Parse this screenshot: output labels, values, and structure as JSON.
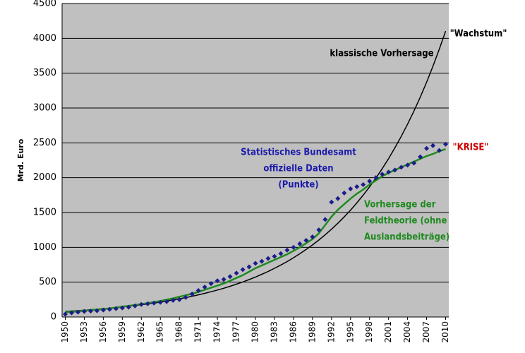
{
  "chart_data": {
    "type": "line",
    "ylabel": "Mrd. Euro",
    "x": [
      1950,
      1951,
      1952,
      1953,
      1954,
      1955,
      1956,
      1957,
      1958,
      1959,
      1960,
      1961,
      1962,
      1963,
      1964,
      1965,
      1966,
      1967,
      1968,
      1969,
      1970,
      1971,
      1972,
      1973,
      1974,
      1975,
      1976,
      1977,
      1978,
      1979,
      1980,
      1981,
      1982,
      1983,
      1984,
      1985,
      1986,
      1987,
      1988,
      1989,
      1990,
      1991,
      1992,
      1993,
      1994,
      1995,
      1996,
      1997,
      1998,
      1999,
      2000,
      2001,
      2002,
      2003,
      2004,
      2005,
      2006,
      2007,
      2008,
      2009,
      2010
    ],
    "series": [
      {
        "color": "#000000",
        "style": "line",
        "values": [
          80,
          85,
          91,
          97,
          104,
          111,
          119,
          127,
          135,
          145,
          154,
          165,
          176,
          188,
          201,
          214,
          229,
          245,
          261,
          279,
          298,
          318,
          340,
          363,
          387,
          413,
          441,
          471,
          503,
          537,
          574,
          613,
          654,
          699,
          746,
          796,
          850,
          908,
          970,
          1035,
          1105,
          1180,
          1260,
          1346,
          1437,
          1534,
          1638,
          1749,
          1868,
          1994,
          2130,
          2274,
          2428,
          2593,
          2769,
          2956,
          3157,
          3371,
          3599,
          3843,
          4104
        ]
      },
      {
        "color": "#1f8a1f",
        "style": "line",
        "values": [
          70,
          75,
          82,
          90,
          98,
          106,
          115,
          125,
          136,
          148,
          160,
          172,
          185,
          200,
          215,
          230,
          248,
          268,
          290,
          312,
          335,
          360,
          390,
          420,
          450,
          480,
          520,
          560,
          600,
          650,
          700,
          740,
          780,
          820,
          860,
          900,
          950,
          1000,
          1060,
          1120,
          1200,
          1320,
          1440,
          1540,
          1620,
          1700,
          1770,
          1830,
          1900,
          1960,
          2020,
          2070,
          2110,
          2150,
          2190,
          2230,
          2270,
          2310,
          2340,
          2380,
          2410
        ]
      },
      {
        "color": "#1c1c8c",
        "style": "points",
        "values": [
          40,
          60,
          70,
          80,
          85,
          90,
          100,
          110,
          120,
          130,
          140,
          160,
          180,
          190,
          200,
          210,
          220,
          240,
          250,
          280,
          330,
          380,
          430,
          480,
          520,
          540,
          580,
          630,
          680,
          720,
          770,
          800,
          840,
          870,
          910,
          960,
          1000,
          1050,
          1100,
          1150,
          1250,
          1400,
          1650,
          1700,
          1780,
          1840,
          1870,
          1900,
          1950,
          2000,
          2050,
          2080,
          2110,
          2150,
          2180,
          2210,
          2300,
          2420,
          2460,
          2390,
          2480
        ]
      }
    ],
    "annotations": [
      {
        "text": [
          "klassische Vorhersage"
        ],
        "color": "#000000"
      },
      {
        "text": [
          "\"Wachstum\""
        ],
        "color": "#000000"
      },
      {
        "text": [
          "Statistisches Bundesamt",
          "offizielle Daten",
          "(Punkte)"
        ],
        "color": "#1c1caa"
      },
      {
        "text": [
          "\"KRISE\""
        ],
        "color": "#cc0000"
      },
      {
        "text": [
          "Vorhersage der",
          "Feldtheorie (ohne",
          "Auslandsbeiträge)"
        ],
        "color": "#1f8a1f"
      }
    ],
    "xlim": [
      1949.5,
      2010.5
    ],
    "xticks": [
      1950,
      1953,
      1956,
      1959,
      1962,
      1965,
      1968,
      1971,
      1974,
      1977,
      1980,
      1983,
      1986,
      1989,
      1992,
      1995,
      1998,
      2001,
      2004,
      2007,
      2010
    ],
    "ylim": [
      0,
      4500
    ],
    "yticks": [
      0,
      500,
      1000,
      1500,
      2000,
      2500,
      3000,
      3500,
      4000,
      4500
    ],
    "grid": true,
    "background": "#c0c0c0"
  }
}
